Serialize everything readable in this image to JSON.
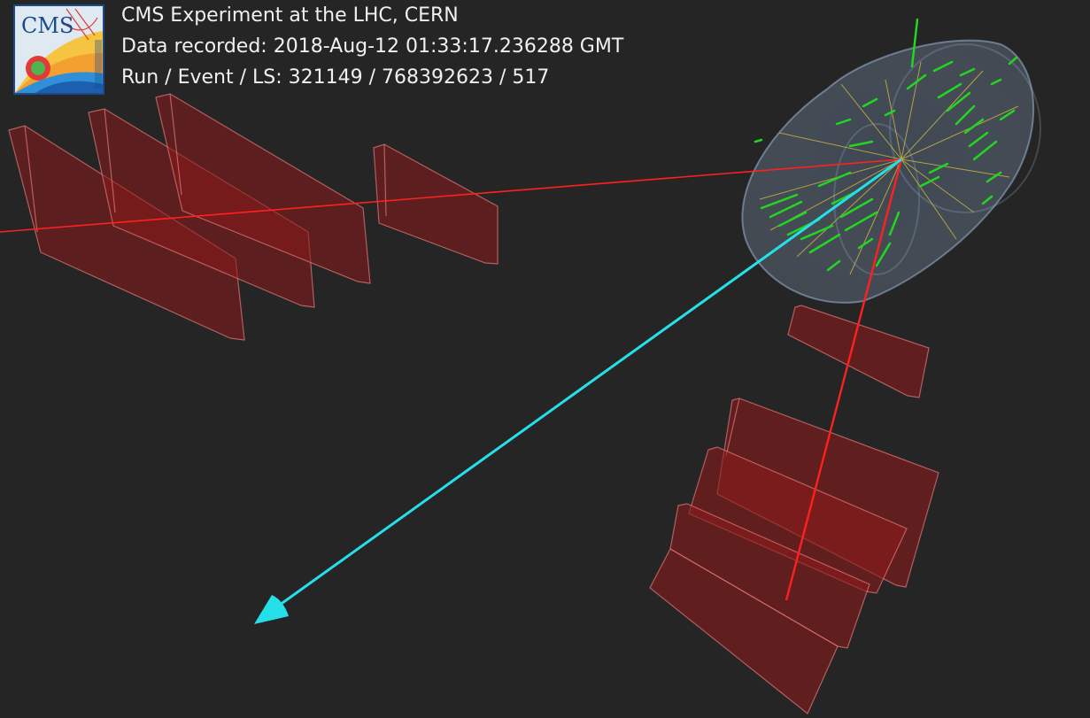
{
  "header": {
    "title": "CMS Experiment at the LHC, CERN",
    "recorded": "Data recorded: 2018-Aug-12 01:33:17.236288 GMT",
    "run_event": "Run / Event / LS: 321149 / 768392623 / 517"
  },
  "logo": {
    "text": "CMS"
  },
  "colors": {
    "background": "#252525",
    "muon_chamber_fill": "#8b1a1a",
    "muon_chamber_edge": "#e07a7a",
    "muon_track": "#ff2020",
    "met_arrow": "#25e0e8",
    "tracker_hits": "#22d622",
    "tracker_tracks": "#d8c040",
    "tracker_cylinder": "#9ab4d4"
  }
}
